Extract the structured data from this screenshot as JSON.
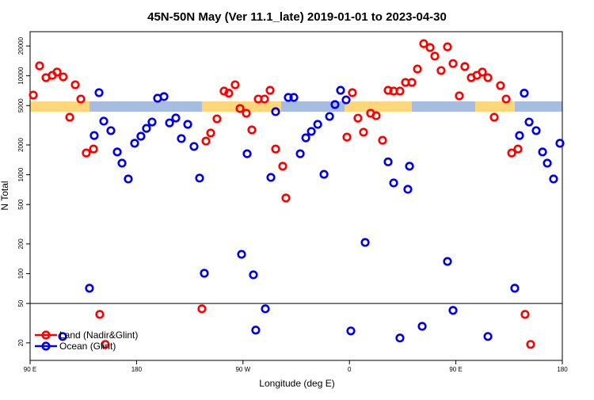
{
  "chart_data": {
    "type": "scatter",
    "title": "45N-50N May (Ver 11.1_late)   2019-01-01 to 2023-04-30",
    "xlabel": "Longitude (deg E)",
    "ylabel": "N Total",
    "log_y": true,
    "reference_line": 50,
    "legend": "bottom-left",
    "xlim": [
      90,
      540
    ],
    "ylim": [
      13.3,
      27900
    ],
    "xticks": [
      {
        "value": 90,
        "label": "90 E"
      },
      {
        "value": 180,
        "label": "180"
      },
      {
        "value": 270,
        "label": "90 W"
      },
      {
        "value": 360,
        "label": "0"
      },
      {
        "value": 450,
        "label": "90 E"
      },
      {
        "value": 540,
        "label": "180"
      }
    ],
    "yticks": [
      20000,
      10000,
      5000,
      2000,
      1000,
      500,
      200,
      100,
      50,
      20
    ],
    "series": [
      {
        "name": "Land (Nadir&Glint)",
        "color": "#ff0000",
        "x": [
          92.7,
          98,
          103.4,
          108.8,
          112.8,
          118,
          123.5,
          128.2,
          132.9,
          137.5,
          143.6,
          148.9,
          153.6,
          235.3,
          238.7,
          242.7,
          248,
          254,
          258,
          263.4,
          267.5,
          272.8,
          277.5,
          282.9,
          288.2,
          292.9,
          297.6,
          303.6,
          306.3,
          357.9,
          362.5,
          367.2,
          371.9,
          377.9,
          382.6,
          388,
          392.7,
          397.4,
          402.7,
          407.4,
          412.8,
          417.5,
          422.8,
          428.2,
          432.2,
          437.5,
          442.9,
          447.6,
          452.9,
          457.6,
          463,
          467.7,
          472.4,
          477.1,
          482.4,
          487.7,
          492.5,
          497.2,
          502.5,
          508.5,
          513.2
        ],
        "values": [
          6380,
          12600,
          9570,
          10100,
          10900,
          9750,
          3810,
          8110,
          5820,
          1660,
          1820,
          38.8,
          19.3,
          44.2,
          2190,
          2640,
          3670,
          7000,
          6670,
          8110,
          4670,
          4180,
          2840,
          5820,
          5820,
          7130,
          1820,
          1220,
          582,
          2400,
          6750,
          3730,
          2690,
          4180,
          3950,
          2230,
          7130,
          7000,
          7000,
          8570,
          8570,
          11700,
          21100,
          19300,
          15800,
          11300,
          19600,
          13300,
          6270,
          12400,
          9570,
          10100,
          10900,
          9570,
          3810,
          7960,
          5820,
          1660,
          1820,
          38.8,
          19.3
        ]
      },
      {
        "name": "Ocean (Glint)",
        "color": "#0000ee",
        "x": [
          117.5,
          140.2,
          144.2,
          148.3,
          152.3,
          158.3,
          163.7,
          167.7,
          173,
          178.4,
          183.7,
          188.4,
          193.1,
          197.8,
          203.2,
          207.9,
          213.2,
          217.9,
          223.3,
          228.6,
          233.3,
          237.3,
          268.8,
          273.5,
          278.8,
          280.8,
          288.9,
          293.6,
          297.6,
          308.3,
          313,
          318.4,
          323.1,
          327.8,
          333.2,
          338.5,
          343.2,
          347.8,
          352.5,
          357.2,
          361.2,
          373.3,
          392.7,
          397.4,
          402.7,
          409.4,
          410.8,
          421.5,
          442.9,
          447.6,
          477.1,
          499.8,
          503.8,
          507.8,
          511.9,
          517.9,
          523.3,
          527.3,
          532.6,
          538
        ],
        "values": [
          23.2,
          71.3,
          2490,
          6750,
          3480,
          2790,
          1700,
          1310,
          906,
          2080,
          2450,
          2940,
          3410,
          5930,
          6160,
          3340,
          3740,
          2320,
          3230,
          1930,
          925,
          101,
          157,
          1630,
          97.4,
          26.9,
          44.2,
          940,
          4340,
          6040,
          6040,
          1630,
          2360,
          2740,
          3230,
          1010,
          3880,
          5120,
          7130,
          5710,
          26.4,
          207,
          1350,
          826,
          22.4,
          713,
          1220,
          29.4,
          133,
          42.6,
          23.2,
          71.3,
          2490,
          6670,
          3410,
          2790,
          1700,
          1310,
          906,
          2080
        ]
      }
    ]
  }
}
